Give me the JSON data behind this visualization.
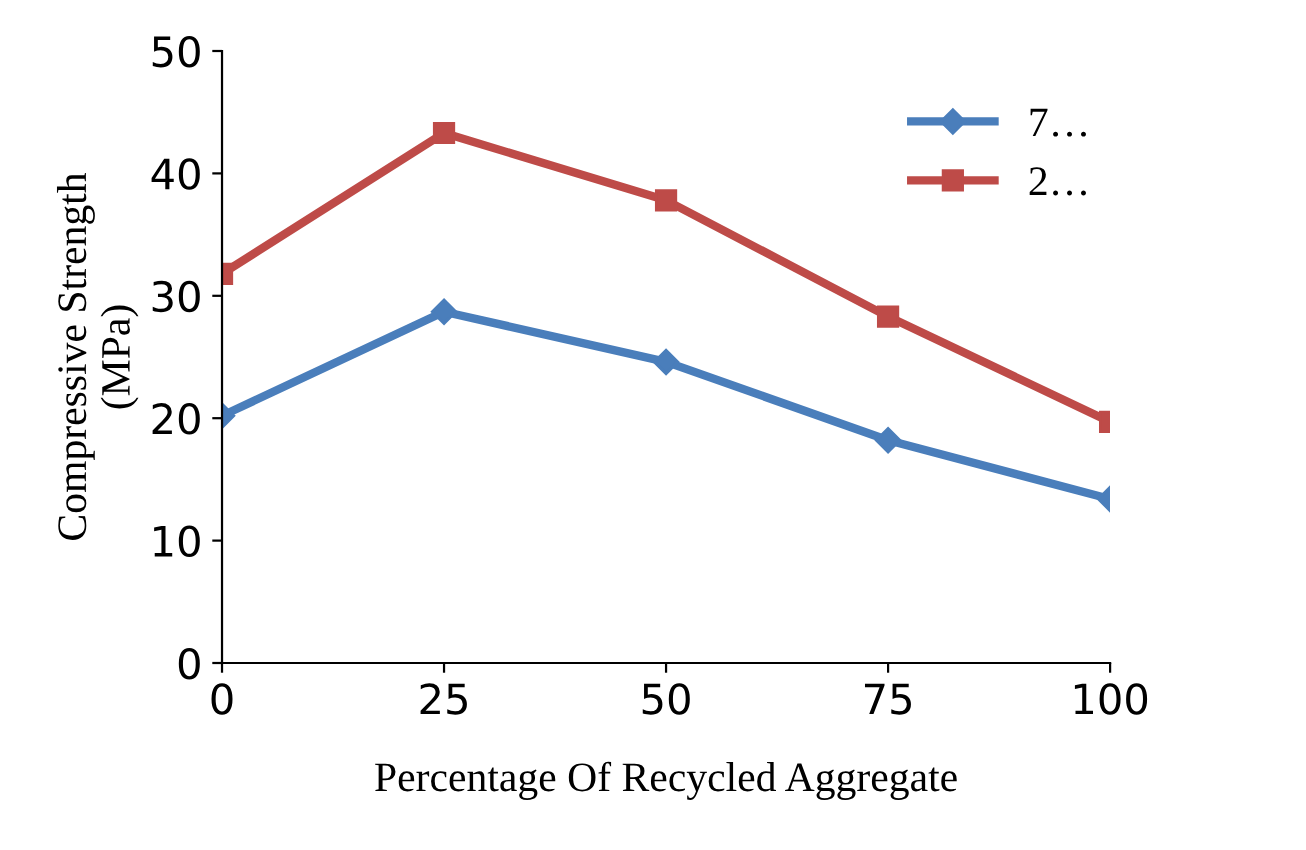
{
  "chart_data": {
    "type": "line",
    "xlabel": "Percentage Of Recycled Aggregate",
    "ylabel": "Compressive Strength\n(MPa)",
    "x": [
      0,
      25,
      50,
      75,
      100
    ],
    "xlim": [
      0,
      100
    ],
    "xticks": [
      0,
      25,
      50,
      75,
      100
    ],
    "ylim": [
      0,
      50
    ],
    "yticks": [
      0,
      10,
      20,
      30,
      40,
      50
    ],
    "series": [
      {
        "name": "7…",
        "color": "#4a7ebb",
        "marker": "diamond",
        "values": [
          20.2,
          28.7,
          24.6,
          18.2,
          13.4
        ]
      },
      {
        "name": "2…",
        "color": "#be4b48",
        "marker": "square",
        "values": [
          31.8,
          43.3,
          37.8,
          28.3,
          19.7
        ]
      }
    ],
    "legend": "top right",
    "grid": false
  }
}
